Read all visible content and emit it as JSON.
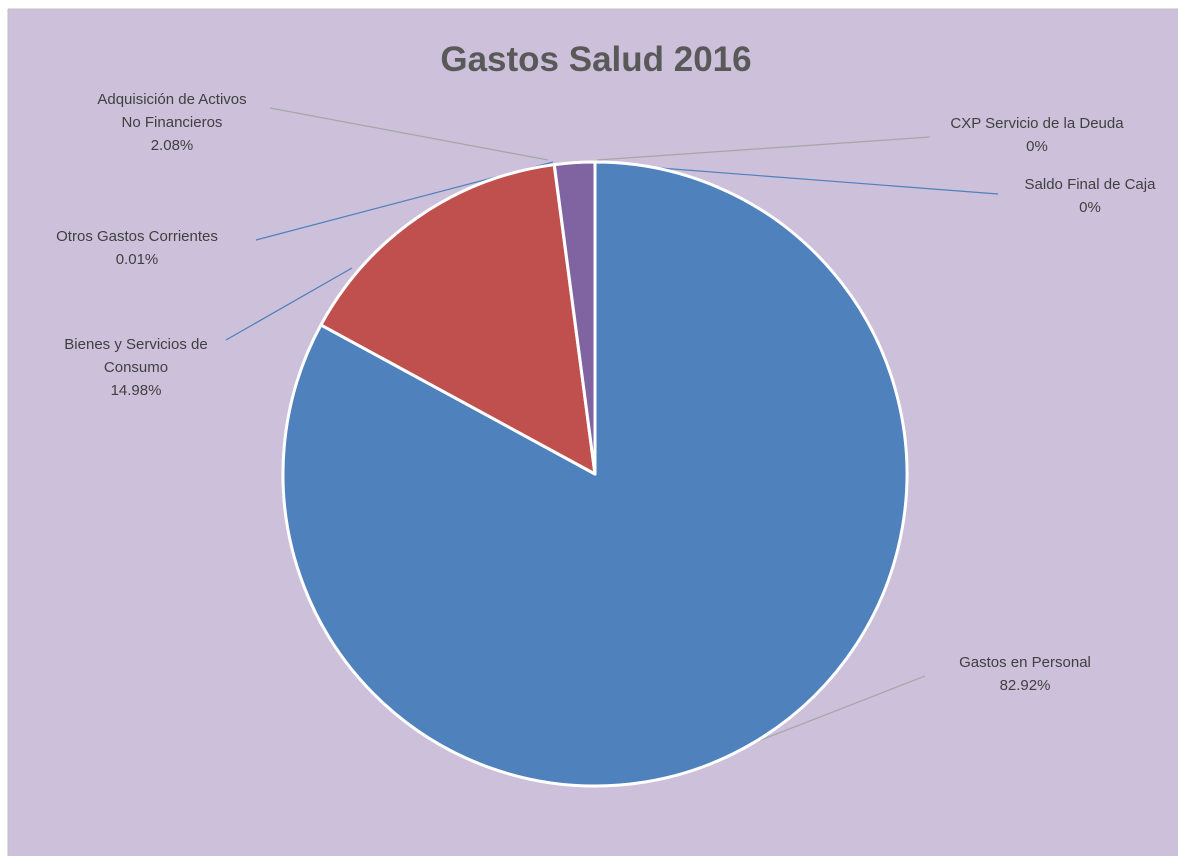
{
  "chart_data": {
    "type": "pie",
    "title": "Gastos Salud 2016",
    "start_angle_deg": 0,
    "direction": "clockwise",
    "slices": [
      {
        "name": "Gastos en Personal",
        "label_lines": [
          "Gastos en Personal",
          "82.92%"
        ],
        "value": 82.92,
        "color": "#4f81bd",
        "show": true,
        "leader": "#a6a6a6"
      },
      {
        "name": "Bienes y Servicios de Consumo",
        "label_lines": [
          "Bienes y Servicios de",
          "Consumo",
          "14.98%"
        ],
        "value": 14.98,
        "color": "#c0504d",
        "show": true,
        "leader": "#4f81bd"
      },
      {
        "name": "Otros Gastos Corrientes",
        "label_lines": [
          "Otros Gastos Corrientes",
          "0.01%"
        ],
        "value": 0.01,
        "color": "#9bbb59",
        "show": false,
        "leader": "#4f81bd"
      },
      {
        "name": "Adquisición de Activos No Financieros",
        "label_lines": [
          "Adquisición de Activos",
          "No Financieros",
          "2.08%"
        ],
        "value": 2.08,
        "color": "#8064a2",
        "show": true,
        "leader": "#a6a6a6"
      },
      {
        "name": "CXP Servicio de la Deuda",
        "label_lines": [
          "CXP Servicio de la Deuda",
          "0%"
        ],
        "value": 0,
        "color": "#4bacc6",
        "show": false,
        "leader": "#a6a6a6"
      },
      {
        "name": "Saldo Final de Caja",
        "label_lines": [
          "Saldo Final de Caja",
          "0%"
        ],
        "value": 0,
        "color": "#f79646",
        "show": false,
        "leader": "#4f81bd"
      }
    ],
    "colors": {
      "plot_background": "#ccc0da",
      "title": "#595959",
      "label_text": "#404040",
      "slice_border": "#ffffff"
    }
  }
}
